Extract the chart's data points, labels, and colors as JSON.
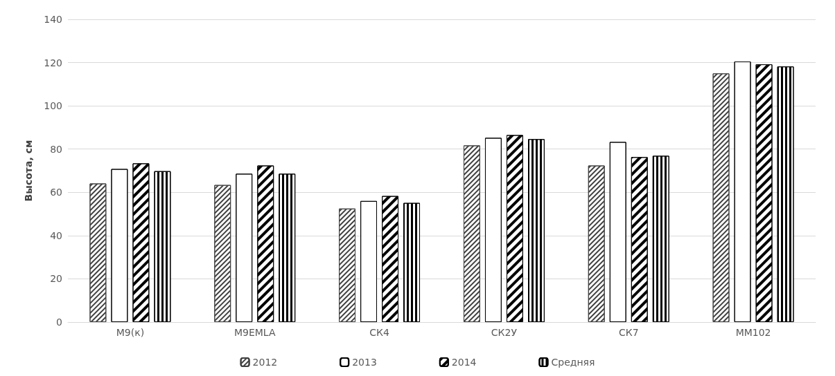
{
  "chart_data": {
    "type": "bar",
    "ylabel": "Высота, см",
    "categories": [
      "М9(к)",
      "M9EMLA",
      "СК4",
      "СК2У",
      "СК7",
      "ММ102"
    ],
    "series": [
      {
        "name": "2012",
        "color": "#404040",
        "values": [
          64.1,
          63.4,
          52.5,
          81.7,
          72.4,
          115
        ]
      },
      {
        "name": "2013",
        "color": "#000000",
        "values": [
          70.8,
          68.6,
          56,
          85.2,
          83.3,
          120.5
        ]
      },
      {
        "name": "2014",
        "color": "#000000",
        "values": [
          73.4,
          72.4,
          58.3,
          86.5,
          76.3,
          119.2
        ]
      },
      {
        "name": "Средняя",
        "color": "#000000",
        "values": [
          69.8,
          68.6,
          55.1,
          84.6,
          76.9,
          118.2
        ]
      }
    ],
    "ylim": [
      0,
      140
    ],
    "yticks": [
      0,
      20,
      40,
      60,
      80,
      100,
      120,
      140
    ],
    "grid": "y",
    "legend": "bottom"
  }
}
